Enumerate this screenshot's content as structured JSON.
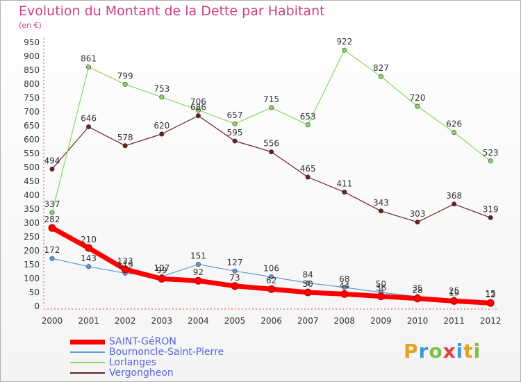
{
  "header": {
    "title": "Evolution du Montant de la Dette par Habitant",
    "subtitle": "(en €)"
  },
  "brand": {
    "text": "Proxiti",
    "colors": [
      "#e8a020",
      "#3b9bd8",
      "#7ac143",
      "#e04040",
      "#3b9bd8",
      "#e8a020",
      "#7ac143"
    ]
  },
  "chart_data": {
    "type": "line",
    "title": "Evolution du Montant de la Dette par Habitant",
    "subtitle": "(en €)",
    "xlabel": "",
    "ylabel": "",
    "x": [
      "2000",
      "2001",
      "2002",
      "2003",
      "2004",
      "2005",
      "2006",
      "2007",
      "2008",
      "2009",
      "2010",
      "2011",
      "2012"
    ],
    "ylim": [
      0,
      950
    ],
    "yticks": [
      0,
      50,
      100,
      150,
      200,
      250,
      300,
      350,
      400,
      450,
      500,
      550,
      600,
      650,
      700,
      750,
      800,
      850,
      900,
      950
    ],
    "grid": false,
    "legend_position": "bottom-left",
    "series": [
      {
        "name": "SAINT-GéRON",
        "color": "#ff0000",
        "values": [
          282,
          210,
          133,
          99,
          92,
          73,
          62,
          50,
          44,
          36,
          28,
          19,
          12
        ]
      },
      {
        "name": "Bournoncle-Saint-Pierre",
        "color": "#5b9bd5",
        "values": [
          172,
          143,
          119,
          107,
          151,
          127,
          106,
          84,
          68,
          50,
          35,
          25,
          15
        ]
      },
      {
        "name": "Lorlanges",
        "color": "#8dd35f",
        "values": [
          337,
          861,
          799,
          753,
          706,
          657,
          715,
          653,
          922,
          827,
          720,
          626,
          523
        ]
      },
      {
        "name": "Vergongheon",
        "color": "#6b1f24",
        "values": [
          494,
          646,
          578,
          620,
          686,
          595,
          556,
          465,
          411,
          343,
          303,
          368,
          319
        ]
      }
    ]
  }
}
